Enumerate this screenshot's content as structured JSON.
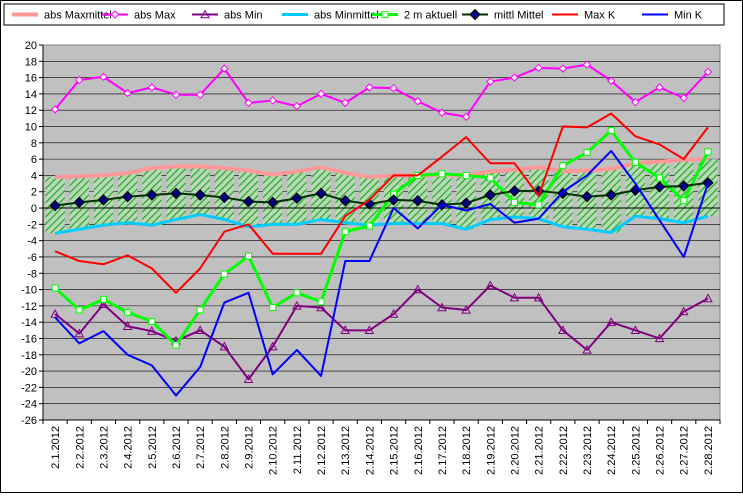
{
  "chart_data": {
    "type": "line",
    "categories": [
      "2.1.2012",
      "2.2.2012",
      "2.3.2012",
      "2.4.2012",
      "2.5.2012",
      "2.6.2012",
      "2.7.2012",
      "2.8.2012",
      "2.9.2012",
      "2.10.2012",
      "2.11.2012",
      "2.12.2012",
      "2.13.2012",
      "2.14.2012",
      "2.15.2012",
      "2.16.2012",
      "2.17.2012",
      "2.18.2012",
      "2.19.2012",
      "2.20.2012",
      "2.21.2012",
      "2.22.2012",
      "2.23.2012",
      "2.24.2012",
      "2.25.2012",
      "2.26.2012",
      "2.27.2012",
      "2.28.2012"
    ],
    "ylim": [
      -26,
      20
    ],
    "y_tick_step": 2,
    "grid": true,
    "legend_position": "top",
    "plot_background": "#c0c0c0",
    "band_fill": "#33aa33",
    "series": [
      {
        "name": "abs Maxmittel",
        "color": "#ff9999",
        "marker": "none",
        "width": 4,
        "values": [
          3.8,
          3.9,
          4.0,
          4.3,
          4.9,
          5.1,
          5.1,
          4.9,
          4.6,
          4.1,
          4.5,
          5.0,
          4.3,
          3.8,
          4.0,
          4.0,
          4.1,
          4.0,
          4.5,
          4.7,
          5.0,
          4.5,
          4.6,
          4.8,
          5.5,
          5.7,
          5.9,
          6.0
        ]
      },
      {
        "name": "abs Max",
        "color": "#ff00ff",
        "marker": "diamond-open",
        "values": [
          12.1,
          15.7,
          16.1,
          14.1,
          14.8,
          13.9,
          13.9,
          17.1,
          12.9,
          13.2,
          12.5,
          14.0,
          12.9,
          14.8,
          14.7,
          13.1,
          11.7,
          11.2,
          15.5,
          16.0,
          17.2,
          17.1,
          17.6,
          15.6,
          13.0,
          14.8,
          13.5,
          16.7
        ]
      },
      {
        "name": "abs Min",
        "color": "#800080",
        "marker": "triangle-open",
        "values": [
          -13.0,
          -15.4,
          -11.8,
          -14.5,
          -15.1,
          -16.3,
          -15.0,
          -17.0,
          -21.0,
          -17.0,
          -12.0,
          -12.2,
          -15.0,
          -15.0,
          -13.0,
          -10.0,
          -12.2,
          -12.5,
          -9.5,
          -11.0,
          -11.0,
          -15.0,
          -17.4,
          -14.0,
          -15.0,
          -16.0,
          -12.7,
          -11.1
        ]
      },
      {
        "name": "abs Minmittel",
        "color": "#00ccff",
        "marker": "none",
        "width": 3,
        "values": [
          -3.1,
          -2.6,
          -2.1,
          -1.8,
          -2.1,
          -1.4,
          -0.8,
          -1.4,
          -2.3,
          -2.0,
          -2.0,
          -1.4,
          -1.8,
          -2.1,
          -1.9,
          -1.9,
          -1.9,
          -2.6,
          -1.4,
          -1.1,
          -1.3,
          -2.3,
          -2.6,
          -3.0,
          -1.0,
          -1.3,
          -1.8,
          -1.0
        ]
      },
      {
        "name": "2 m aktuell",
        "color": "#00ff00",
        "marker": "square-open",
        "width": 3,
        "values": [
          -9.8,
          -12.5,
          -11.2,
          -12.8,
          -13.9,
          -16.8,
          -12.5,
          -8.1,
          -5.9,
          -12.2,
          -10.4,
          -11.5,
          -2.9,
          -2.2,
          1.7,
          4.0,
          4.2,
          4.0,
          3.7,
          0.7,
          0.4,
          5.2,
          6.8,
          9.5,
          5.6,
          3.7,
          0.9,
          6.9
        ]
      },
      {
        "name": "mittl Mittel",
        "color": "#003300",
        "marker": "diamond-filled",
        "markerColor": "#000080",
        "values": [
          0.3,
          0.7,
          1.0,
          1.4,
          1.6,
          1.8,
          1.6,
          1.3,
          0.8,
          0.7,
          1.2,
          1.8,
          0.9,
          0.5,
          1.0,
          0.9,
          0.4,
          0.6,
          1.6,
          2.1,
          2.1,
          1.8,
          1.4,
          1.6,
          2.2,
          2.6,
          2.7,
          3.1
        ]
      },
      {
        "name": "Max K",
        "color": "#ff0000",
        "marker": "none",
        "values": [
          -5.3,
          -6.5,
          -6.9,
          -5.8,
          -7.4,
          -10.4,
          -7.4,
          -2.9,
          -2.0,
          -5.6,
          -5.6,
          -5.6,
          -1.0,
          1.0,
          4.0,
          4.0,
          6.3,
          8.7,
          5.5,
          5.5,
          1.5,
          10.0,
          9.9,
          11.6,
          8.8,
          7.8,
          6.0,
          9.9
        ]
      },
      {
        "name": "Min K",
        "color": "#0000ff",
        "marker": "none",
        "values": [
          -13.4,
          -16.6,
          -15.1,
          -18.0,
          -19.3,
          -23.0,
          -19.5,
          -11.6,
          -10.4,
          -20.4,
          -17.4,
          -20.6,
          -6.5,
          -6.5,
          0.0,
          -2.5,
          0.4,
          -0.3,
          0.5,
          -1.8,
          -1.3,
          2.0,
          4.0,
          7.0,
          3.0,
          -1.5,
          -6.0,
          3.0
        ]
      }
    ]
  }
}
